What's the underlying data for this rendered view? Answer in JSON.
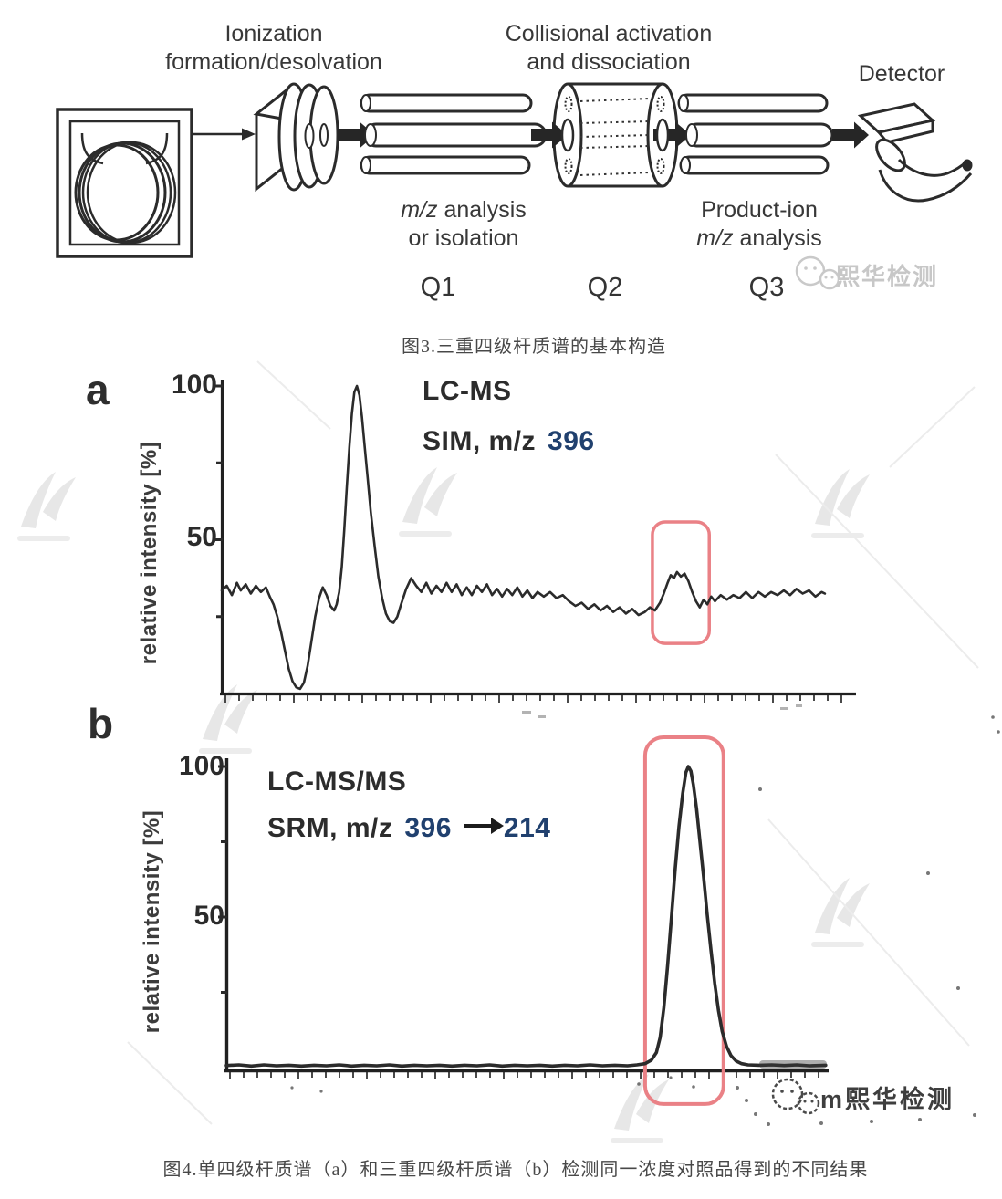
{
  "diagram": {
    "ionization_line1": "Ionization",
    "ionization_line2": "formation/desolvation",
    "collision_line1": "Collisional activation",
    "collision_line2": "and dissociation",
    "detector_label": "Detector",
    "q1_caption": {
      "mz": "m/z",
      "rest": " analysis",
      "line2": "or isolation"
    },
    "q3_caption": {
      "line1": "Product-ion",
      "mz": "m/z",
      "rest": " analysis"
    },
    "q1": "Q1",
    "q2": "Q2",
    "q3": "Q3"
  },
  "watermarks": {
    "top_text": "熙华检测",
    "bottom_text": "m熙华检测"
  },
  "figure3_caption": "图3.三重四级杆质谱的基本构造",
  "figure4_caption": "图4.单四级杆质谱（a）和三重四级杆质谱（b）检测同一浓度对照品得到的不同结果",
  "chart_a": {
    "panel": "a",
    "tick100": "100",
    "tick50": "50",
    "ylabel": "relative intensity [%]",
    "ann1": "LC-MS",
    "ann2_prefix": "SIM, m/z",
    "ann2_value": "396"
  },
  "chart_b": {
    "panel": "b",
    "tick100": "100",
    "tick50": "50",
    "ylabel": "relative intensity [%]",
    "ann1": "LC-MS/MS",
    "ann2_prefix": "SRM, m/z",
    "ann2_value1": "396",
    "ann2_value2": "214"
  },
  "icons": {
    "top_watermark": "wechat-bubbles-icon",
    "bottom_watermark": "wechat-bubbles-icon",
    "detector": "electron-multiplier-horn-icon",
    "srm_transition": "right-arrow-icon",
    "background_logo": "faint-x-logo-watermark"
  },
  "colors": {
    "red_highlight": "#ea8186",
    "navy_value": "#20406e",
    "trace": "#2b2b2b",
    "axis": "#202020",
    "watermark_gray": "#c7c7c7"
  },
  "chart_data": [
    {
      "type": "line",
      "panel": "a",
      "title": "LC-MS  SIM, m/z 396",
      "ylabel": "relative intensity [%]",
      "ylim": [
        0,
        100
      ],
      "yticks": [
        25,
        50,
        75,
        100
      ],
      "xlabel": "",
      "grid": false,
      "description": "Single-quadrupole SIM chromatogram: noisy baseline ~30-35%, negative dip to ~2% at x≈12, solvent-front peak to 100% at x≈21, small analyte bump ~39% at x≈72 highlighted by red box",
      "highlight_box": {
        "x": [
          68.2,
          77.2
        ],
        "y": [
          16.3,
          55.8
        ]
      },
      "points": [
        [
          0,
          33.5
        ],
        [
          0.8,
          35
        ],
        [
          1.6,
          32
        ],
        [
          2.4,
          36
        ],
        [
          3,
          33.5
        ],
        [
          3.8,
          35.5
        ],
        [
          4.6,
          32.5
        ],
        [
          5.4,
          35
        ],
        [
          6.2,
          33
        ],
        [
          7,
          34.5
        ],
        [
          7.6,
          31.5
        ],
        [
          8.2,
          29
        ],
        [
          8.8,
          25
        ],
        [
          9.4,
          20
        ],
        [
          10,
          14
        ],
        [
          10.6,
          8
        ],
        [
          11.2,
          4
        ],
        [
          11.8,
          2
        ],
        [
          12.4,
          1.5
        ],
        [
          13,
          3.5
        ],
        [
          13.6,
          9
        ],
        [
          14.2,
          17
        ],
        [
          14.8,
          25
        ],
        [
          15.4,
          31
        ],
        [
          16,
          34.5
        ],
        [
          16.6,
          32
        ],
        [
          17.2,
          28.5
        ],
        [
          17.8,
          27
        ],
        [
          18.2,
          29
        ],
        [
          18.6,
          33
        ],
        [
          19,
          41
        ],
        [
          19.4,
          53
        ],
        [
          19.8,
          67
        ],
        [
          20.2,
          80
        ],
        [
          20.6,
          91
        ],
        [
          21,
          98
        ],
        [
          21.4,
          100
        ],
        [
          21.8,
          97
        ],
        [
          22.2,
          90
        ],
        [
          22.6,
          81
        ],
        [
          23.1,
          70
        ],
        [
          23.6,
          59
        ],
        [
          24.2,
          48
        ],
        [
          24.8,
          38
        ],
        [
          25.4,
          31
        ],
        [
          26,
          26
        ],
        [
          26.6,
          23.5
        ],
        [
          27.2,
          23
        ],
        [
          27.8,
          25
        ],
        [
          28.4,
          29
        ],
        [
          29.2,
          34
        ],
        [
          30,
          37.5
        ],
        [
          30.8,
          35
        ],
        [
          31.6,
          33
        ],
        [
          32.4,
          36
        ],
        [
          33.2,
          32.5
        ],
        [
          34,
          35
        ],
        [
          34.8,
          33
        ],
        [
          35.6,
          36
        ],
        [
          36.4,
          33
        ],
        [
          37.2,
          35.5
        ],
        [
          38,
          32
        ],
        [
          38.8,
          34.5
        ],
        [
          39.6,
          32
        ],
        [
          40.4,
          35
        ],
        [
          41.2,
          33
        ],
        [
          42,
          35.5
        ],
        [
          42.8,
          32
        ],
        [
          43.6,
          34
        ],
        [
          44.4,
          31.5
        ],
        [
          45.2,
          34
        ],
        [
          46,
          32
        ],
        [
          46.8,
          34.5
        ],
        [
          47.6,
          31.5
        ],
        [
          48.4,
          33.5
        ],
        [
          49.2,
          31
        ],
        [
          50,
          33
        ],
        [
          51,
          31.5
        ],
        [
          52,
          33
        ],
        [
          53,
          31
        ],
        [
          54,
          32
        ],
        [
          55,
          30
        ],
        [
          56,
          28.5
        ],
        [
          57,
          29.5
        ],
        [
          58,
          27.5
        ],
        [
          59,
          29
        ],
        [
          60,
          27
        ],
        [
          61,
          28.5
        ],
        [
          62,
          26.5
        ],
        [
          63,
          28
        ],
        [
          64,
          26
        ],
        [
          65,
          27.5
        ],
        [
          66,
          25.5
        ],
        [
          67,
          26.5
        ],
        [
          67.8,
          28
        ],
        [
          68.6,
          27
        ],
        [
          69.4,
          29.5
        ],
        [
          70,
          32.5
        ],
        [
          70.6,
          36
        ],
        [
          71.1,
          38.5
        ],
        [
          71.6,
          37.5
        ],
        [
          72.1,
          39.5
        ],
        [
          72.7,
          38
        ],
        [
          73.3,
          39
        ],
        [
          73.9,
          36.5
        ],
        [
          74.5,
          33
        ],
        [
          75.1,
          30
        ],
        [
          75.7,
          28
        ],
        [
          76.3,
          30.5
        ],
        [
          76.9,
          29
        ],
        [
          77.5,
          31.5
        ],
        [
          78.1,
          30
        ],
        [
          79,
          32
        ],
        [
          80,
          30.5
        ],
        [
          81,
          32
        ],
        [
          82,
          31
        ],
        [
          83,
          33
        ],
        [
          84,
          31
        ],
        [
          85,
          33
        ],
        [
          86,
          31.5
        ],
        [
          87,
          33
        ],
        [
          88,
          32
        ],
        [
          89,
          33.5
        ],
        [
          90,
          32
        ],
        [
          91,
          34
        ],
        [
          92,
          32.5
        ],
        [
          93,
          33.5
        ],
        [
          94,
          31.5
        ],
        [
          95,
          33
        ],
        [
          95.5,
          32.5
        ]
      ]
    },
    {
      "type": "line",
      "panel": "b",
      "title": "LC-MS/MS  SRM, m/z 396 → 214",
      "ylabel": "relative intensity [%]",
      "ylim": [
        0,
        100
      ],
      "yticks": [
        25,
        50,
        75,
        100
      ],
      "xlabel": "",
      "grid": false,
      "description": "Triple-quadrupole SRM chromatogram: flat baseline ~1%, single sharp analyte peak reaching 100% at x≈73.7, highlighted by tall red box",
      "highlight_box": {
        "x": [
          66.8,
          79.3
        ],
        "y": [
          -12.1,
          109.7
        ]
      },
      "points": [
        [
          0,
          0.7
        ],
        [
          2,
          0.9
        ],
        [
          4,
          0.5
        ],
        [
          6,
          0.9
        ],
        [
          8,
          0.6
        ],
        [
          10,
          0.8
        ],
        [
          12,
          0.5
        ],
        [
          14,
          0.8
        ],
        [
          16,
          0.6
        ],
        [
          18,
          0.9
        ],
        [
          20,
          0.5
        ],
        [
          22,
          0.8
        ],
        [
          24,
          0.6
        ],
        [
          26,
          0.9
        ],
        [
          28,
          0.5
        ],
        [
          30,
          0.8
        ],
        [
          32,
          0.6
        ],
        [
          34,
          0.8
        ],
        [
          36,
          0.5
        ],
        [
          38,
          0.8
        ],
        [
          40,
          0.6
        ],
        [
          42,
          0.9
        ],
        [
          44,
          0.5
        ],
        [
          46,
          0.8
        ],
        [
          48,
          0.6
        ],
        [
          50,
          0.8
        ],
        [
          52,
          0.5
        ],
        [
          54,
          0.8
        ],
        [
          56,
          0.6
        ],
        [
          58,
          0.9
        ],
        [
          60,
          0.6
        ],
        [
          62,
          0.8
        ],
        [
          64,
          0.6
        ],
        [
          65.5,
          0.9
        ],
        [
          66.8,
          1.3
        ],
        [
          67.8,
          2.5
        ],
        [
          68.6,
          5
        ],
        [
          69.2,
          10
        ],
        [
          69.8,
          20
        ],
        [
          70.4,
          34
        ],
        [
          71,
          50
        ],
        [
          71.6,
          66
        ],
        [
          72.2,
          80
        ],
        [
          72.8,
          91
        ],
        [
          73.3,
          98
        ],
        [
          73.7,
          100
        ],
        [
          74.1,
          98.5
        ],
        [
          74.5,
          94
        ],
        [
          75,
          86
        ],
        [
          75.5,
          76
        ],
        [
          76.1,
          64
        ],
        [
          76.7,
          51
        ],
        [
          77.3,
          39
        ],
        [
          77.9,
          28
        ],
        [
          78.5,
          19
        ],
        [
          79.1,
          12
        ],
        [
          79.8,
          7
        ],
        [
          80.5,
          4
        ],
        [
          81.3,
          2.2
        ],
        [
          82.2,
          1.3
        ],
        [
          83.2,
          0.9
        ],
        [
          85,
          0.8
        ],
        [
          87,
          0.9
        ],
        [
          89,
          0.7
        ],
        [
          91,
          0.9
        ],
        [
          93,
          0.6
        ],
        [
          95.6,
          0.8
        ]
      ]
    }
  ]
}
